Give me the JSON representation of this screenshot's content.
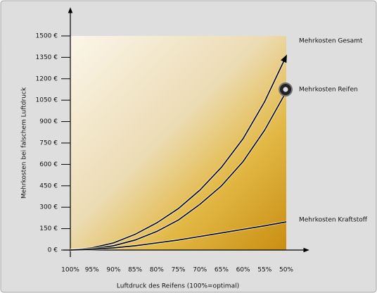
{
  "chart_data": {
    "type": "line",
    "y_label": "Mehrkosten bei falschem Luftdruck",
    "x_label": "Luftdruck des Reifens (100%=optimal)",
    "categories": [
      "100%",
      "95%",
      "90%",
      "85%",
      "80%",
      "75%",
      "70%",
      "65%",
      "60%",
      "55%",
      "50%"
    ],
    "series": [
      {
        "name": "Mehrkosten Gesamt",
        "color": "#000000",
        "values": [
          0,
          15,
          50,
          110,
          190,
          290,
          420,
          580,
          780,
          1040,
          1360
        ]
      },
      {
        "name": "Mehrkosten Reifen",
        "color": "#000000",
        "values": [
          0,
          8,
          30,
          70,
          130,
          210,
          320,
          450,
          620,
          840,
          1110
        ]
      },
      {
        "name": "Mehrkosten Kraftstoff",
        "color": "#000000",
        "values": [
          0,
          5,
          15,
          30,
          50,
          70,
          95,
          120,
          145,
          170,
          197
        ]
      }
    ],
    "ylim": [
      0,
      1500
    ],
    "yticks": [
      {
        "value": 0,
        "label": "0 €"
      },
      {
        "value": 150,
        "label": "150 €"
      },
      {
        "value": 300,
        "label": "300 €"
      },
      {
        "value": 450,
        "label": "450 €"
      },
      {
        "value": 600,
        "label": "600 €"
      },
      {
        "value": 750,
        "label": "750 €"
      },
      {
        "value": 900,
        "label": "900 €"
      },
      {
        "value": 1050,
        "label": "1050 €"
      },
      {
        "value": 1200,
        "label": "1200 €"
      },
      {
        "value": 1350,
        "label": "1350 €"
      },
      {
        "value": 1500,
        "label": "1500 €"
      }
    ]
  }
}
